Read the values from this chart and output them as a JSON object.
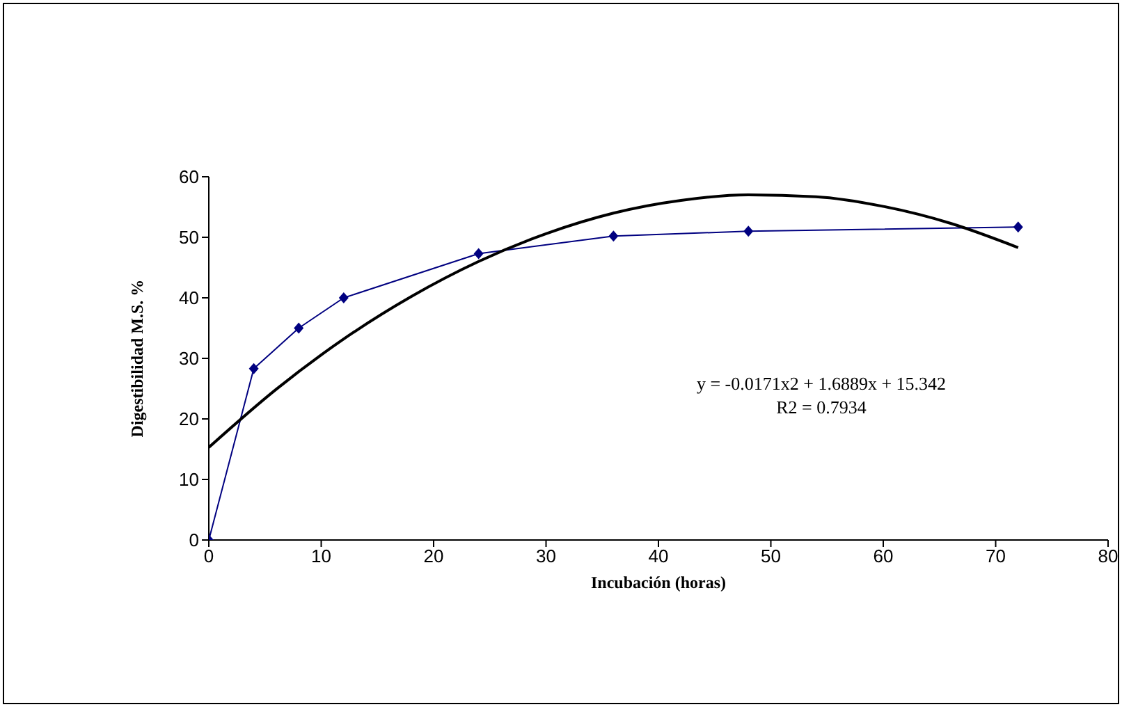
{
  "chart_data": {
    "type": "line",
    "xlabel": "Incubación (horas)",
    "ylabel": "Digestibilidad M.S. %",
    "xlim": [
      0,
      80
    ],
    "xticks": [
      0,
      10,
      20,
      30,
      40,
      50,
      60,
      70,
      80
    ],
    "ylim": [
      0,
      60
    ],
    "yticks": [
      0,
      10,
      20,
      30,
      40,
      50,
      60
    ],
    "series": [
      {
        "color": "#000080",
        "marker": "diamond",
        "x": [
          0,
          4,
          8,
          12,
          24,
          36,
          48,
          72
        ],
        "values": [
          0,
          28.3,
          35,
          40,
          47.3,
          50.2,
          51,
          51.7
        ]
      },
      {
        "color": "#000000",
        "marker": "none",
        "x": [
          0,
          6,
          12,
          18,
          24,
          30,
          36,
          42,
          48,
          54,
          60,
          66,
          72
        ],
        "values": [
          15.3,
          24.9,
          33.2,
          40.2,
          46,
          50.6,
          54,
          56.1,
          57,
          56.7,
          55.1,
          52.3,
          48.3
        ]
      }
    ],
    "annotations": [
      {
        "text": "y = -0.0171x2 + 1.6889x + 15.342"
      },
      {
        "text": "R2 = 0.7934"
      }
    ]
  }
}
